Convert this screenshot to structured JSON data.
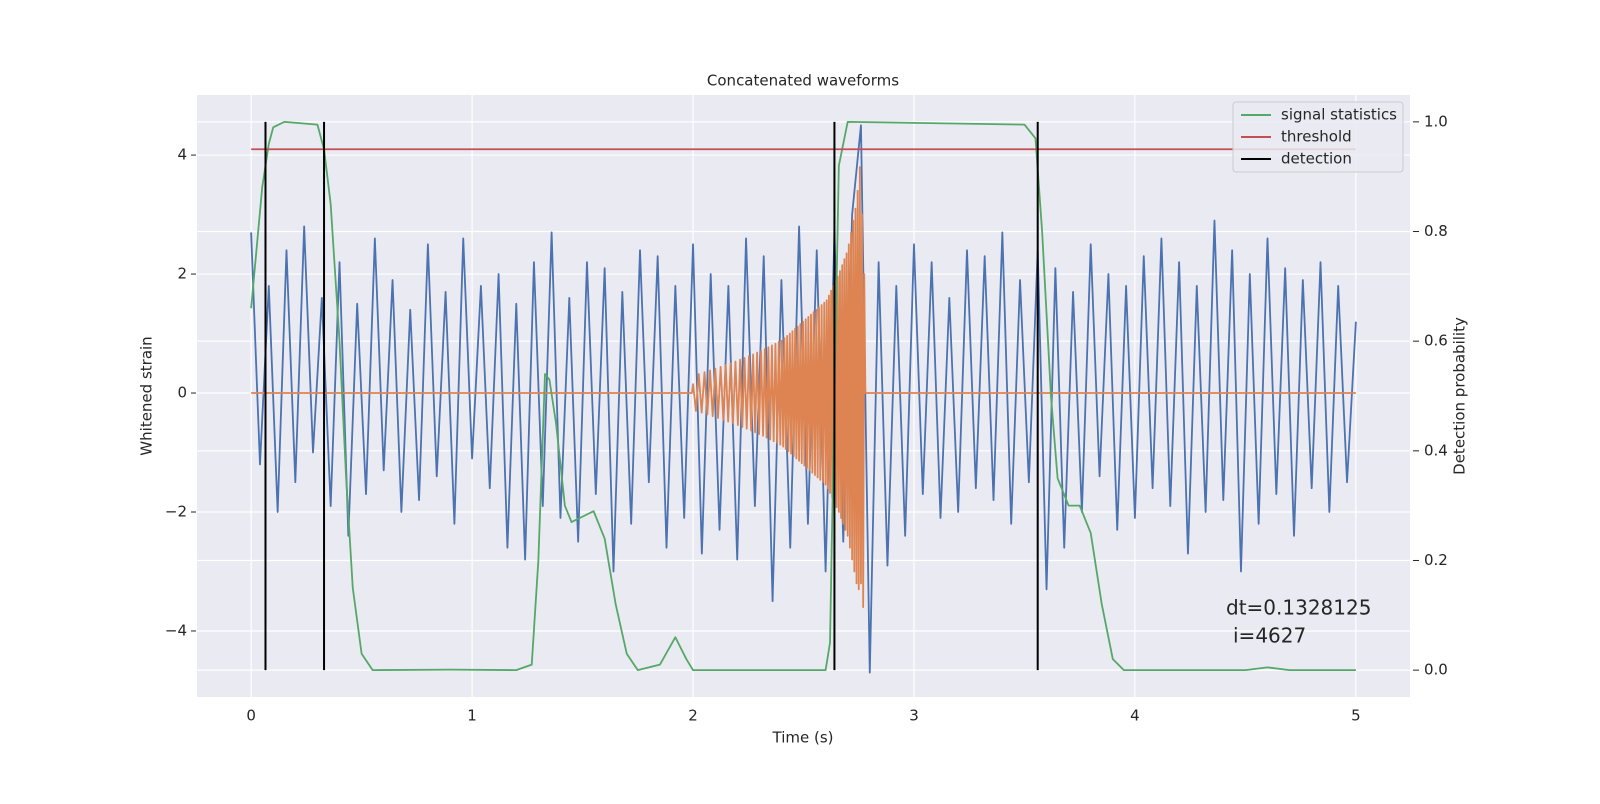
{
  "chart_data": {
    "type": "line",
    "title": "Concatenated waveforms",
    "xlabel": "Time (s)",
    "ylabel": "Whitened strain",
    "y2label": "Detection probability",
    "xlim": [
      -0.245,
      5.245
    ],
    "ylim": [
      -5.11,
      5.01
    ],
    "y2lim": [
      -0.049,
      1.049
    ],
    "xticks": [
      0,
      1,
      2,
      3,
      4,
      5
    ],
    "yticks": [
      {
        "value": -4,
        "label": "−4"
      },
      {
        "value": -2,
        "label": "−2"
      },
      0,
      2,
      4
    ],
    "y2ticks": [
      {
        "value": 0,
        "label": "0.0"
      },
      0.2,
      0.4,
      0.6,
      0.8,
      {
        "value": 1,
        "label": "1.0"
      }
    ],
    "grid": true,
    "legend": "upper right",
    "annotation": [
      "dt=0.1328125",
      "i=4627"
    ],
    "series": [
      {
        "color": "#4c72b0",
        "x": [
          0,
          0.04,
          0.08,
          0.12,
          0.16,
          0.2,
          0.24,
          0.28,
          0.32,
          0.36,
          0.4,
          0.44,
          0.48,
          0.52,
          0.56,
          0.6,
          0.64,
          0.68,
          0.72,
          0.76,
          0.8,
          0.84,
          0.88,
          0.92,
          0.96,
          1,
          1.04,
          1.08,
          1.12,
          1.16,
          1.2,
          1.24,
          1.28,
          1.32,
          1.36,
          1.4,
          1.44,
          1.48,
          1.52,
          1.56,
          1.6,
          1.64,
          1.68,
          1.72,
          1.76,
          1.8,
          1.84,
          1.88,
          1.92,
          1.96,
          2,
          2.04,
          2.08,
          2.12,
          2.16,
          2.2,
          2.24,
          2.28,
          2.32,
          2.36,
          2.4,
          2.44,
          2.48,
          2.52,
          2.56,
          2.6,
          2.64,
          2.68,
          2.72,
          2.76,
          2.8,
          2.84,
          2.88,
          2.92,
          2.96,
          3,
          3.04,
          3.08,
          3.12,
          3.16,
          3.2,
          3.24,
          3.28,
          3.32,
          3.36,
          3.4,
          3.44,
          3.48,
          3.52,
          3.56,
          3.6,
          3.64,
          3.68,
          3.72,
          3.76,
          3.8,
          3.84,
          3.88,
          3.92,
          3.96,
          4,
          4.04,
          4.08,
          4.12,
          4.16,
          4.2,
          4.24,
          4.28,
          4.32,
          4.36,
          4.4,
          4.44,
          4.48,
          4.52,
          4.56,
          4.6,
          4.64,
          4.68,
          4.72,
          4.76,
          4.8,
          4.84,
          4.88,
          4.92,
          4.96,
          5
        ],
        "values": [
          2.7,
          -1.2,
          1.8,
          -2.0,
          2.4,
          -1.5,
          2.8,
          -1.0,
          1.6,
          -1.9,
          2.2,
          -2.4,
          1.5,
          -1.7,
          2.6,
          -1.3,
          1.9,
          -2.0,
          1.4,
          -1.8,
          2.5,
          -1.4,
          1.7,
          -2.2,
          2.6,
          -1.1,
          1.8,
          -1.6,
          2.0,
          -2.6,
          1.5,
          -2.8,
          2.2,
          -1.9,
          2.7,
          -2.1,
          1.6,
          -2.5,
          2.2,
          -1.7,
          2.1,
          -3.0,
          1.7,
          -2.2,
          2.4,
          -1.5,
          2.3,
          -2.6,
          1.8,
          -2.1,
          2.5,
          -2.7,
          2.0,
          -2.3,
          1.8,
          -2.8,
          2.6,
          -1.9,
          2.3,
          -3.5,
          1.9,
          -2.6,
          2.8,
          -2.2,
          2.4,
          -3.0,
          2.7,
          -2.5,
          3.0,
          4.5,
          -4.7,
          2.2,
          -2.9,
          1.8,
          -2.4,
          2.5,
          -1.7,
          2.2,
          -2.1,
          1.6,
          -2.0,
          2.4,
          -1.6,
          2.3,
          -1.8,
          2.7,
          -2.2,
          1.9,
          -1.5,
          2.4,
          -3.3,
          2.1,
          -2.6,
          1.7,
          -2.0,
          2.5,
          -1.4,
          2.0,
          -2.3,
          1.8,
          -2.1,
          2.3,
          -1.6,
          2.6,
          -1.9,
          2.2,
          -2.7,
          1.8,
          -2.0,
          2.9,
          -1.8,
          2.4,
          -3.0,
          2.0,
          -2.2,
          2.6,
          -1.7,
          2.1,
          -2.4,
          1.9,
          -1.6,
          2.2,
          -2.0,
          1.8,
          -1.5,
          1.2
        ]
      },
      {
        "color": "#dd8452",
        "x": [
          0,
          1.995,
          2.0,
          2.013,
          2.026,
          2.039,
          2.052,
          2.065,
          2.077,
          2.089,
          2.101,
          2.113,
          2.125,
          2.137,
          2.148,
          2.159,
          2.17,
          2.181,
          2.192,
          2.203,
          2.213,
          2.223,
          2.233,
          2.243,
          2.253,
          2.263,
          2.272,
          2.281,
          2.29,
          2.299,
          2.308,
          2.317,
          2.325,
          2.333,
          2.341,
          2.349,
          2.357,
          2.365,
          2.373,
          2.381,
          2.388,
          2.395,
          2.402,
          2.408,
          2.414,
          2.42,
          2.426,
          2.432,
          2.438,
          2.444,
          2.45,
          2.456,
          2.462,
          2.468,
          2.474,
          2.48,
          2.486,
          2.492,
          2.498,
          2.504,
          2.51,
          2.516,
          2.522,
          2.528,
          2.534,
          2.54,
          2.546,
          2.552,
          2.558,
          2.564,
          2.57,
          2.576,
          2.582,
          2.588,
          2.594,
          2.6,
          2.605,
          2.61,
          2.615,
          2.62,
          2.625,
          2.63,
          2.635,
          2.64,
          2.645,
          2.65,
          2.655,
          2.66,
          2.665,
          2.67,
          2.675,
          2.68,
          2.685,
          2.69,
          2.695,
          2.7,
          2.705,
          2.71,
          2.715,
          2.72,
          2.725,
          2.73,
          2.735,
          2.74,
          2.745,
          2.75,
          2.755,
          2.76,
          2.765,
          2.77,
          2.775,
          2.78,
          5
        ],
        "values": [
          0,
          0,
          0.15,
          -0.3,
          0.32,
          -0.33,
          0.35,
          -0.36,
          0.38,
          -0.39,
          0.41,
          -0.42,
          0.44,
          -0.45,
          0.47,
          -0.48,
          0.5,
          -0.51,
          0.53,
          -0.54,
          0.56,
          -0.57,
          0.59,
          -0.6,
          0.62,
          -0.63,
          0.65,
          -0.66,
          0.68,
          -0.69,
          0.71,
          -0.72,
          0.74,
          -0.75,
          0.77,
          -0.78,
          0.8,
          -0.81,
          0.83,
          -0.84,
          0.86,
          -0.87,
          0.88,
          -0.9,
          0.92,
          -0.94,
          0.96,
          -0.98,
          1.0,
          -1.02,
          1.04,
          -1.06,
          1.08,
          -1.1,
          1.12,
          -1.14,
          1.16,
          -1.18,
          1.2,
          -1.22,
          1.24,
          -1.26,
          1.28,
          -1.3,
          1.32,
          -1.34,
          1.36,
          -1.38,
          1.4,
          -1.42,
          1.44,
          -1.46,
          1.48,
          -1.5,
          1.52,
          -1.54,
          1.56,
          -1.6,
          1.64,
          -1.68,
          1.72,
          -1.76,
          1.8,
          -1.84,
          1.88,
          -1.92,
          1.96,
          -2.0,
          2.05,
          -2.1,
          2.15,
          -2.2,
          2.25,
          -2.3,
          2.35,
          -2.4,
          2.5,
          -2.6,
          2.7,
          -2.8,
          2.9,
          -3.0,
          3.1,
          -3.2,
          3.4,
          -3.3,
          3.8,
          -3.2,
          3.0,
          -3.6,
          2.0,
          0,
          0
        ]
      },
      {
        "name": "signal statistics",
        "color": "#55a868",
        "axis": "y2",
        "x": [
          0,
          0.05,
          0.08,
          0.1,
          0.15,
          0.3,
          0.33,
          0.36,
          0.4,
          0.43,
          0.46,
          0.5,
          0.55,
          0.9,
          1.2,
          1.27,
          1.3,
          1.33,
          1.35,
          1.38,
          1.42,
          1.45,
          1.5,
          1.55,
          1.6,
          1.65,
          1.7,
          1.75,
          1.85,
          1.92,
          1.97,
          2.0,
          2.6,
          2.62,
          2.64,
          2.66,
          2.7,
          3.5,
          3.55,
          3.58,
          3.62,
          3.65,
          3.7,
          3.75,
          3.8,
          3.85,
          3.9,
          3.95,
          4.5,
          4.6,
          4.7,
          5.0
        ],
        "values": [
          0.66,
          0.88,
          0.96,
          0.99,
          1.0,
          0.995,
          0.95,
          0.85,
          0.6,
          0.35,
          0.15,
          0.03,
          0.0,
          0.001,
          0.0,
          0.01,
          0.2,
          0.54,
          0.53,
          0.45,
          0.3,
          0.27,
          0.28,
          0.29,
          0.24,
          0.12,
          0.03,
          0.0,
          0.01,
          0.06,
          0.02,
          0.0,
          0.0,
          0.05,
          0.5,
          0.92,
          1.0,
          0.995,
          0.97,
          0.8,
          0.5,
          0.35,
          0.3,
          0.3,
          0.25,
          0.12,
          0.02,
          0.0,
          0.0,
          0.005,
          0.0,
          0.0
        ]
      },
      {
        "name": "threshold",
        "color": "#c44e52",
        "axis": "y2",
        "x": [
          0,
          5
        ],
        "values": [
          0.95,
          0.95
        ]
      },
      {
        "name": "detection",
        "color": "#000000",
        "axis": "y2",
        "style": "vlines",
        "x": [
          0.065,
          0.33,
          2.64,
          3.56
        ],
        "span": [
          0,
          1
        ]
      }
    ]
  }
}
